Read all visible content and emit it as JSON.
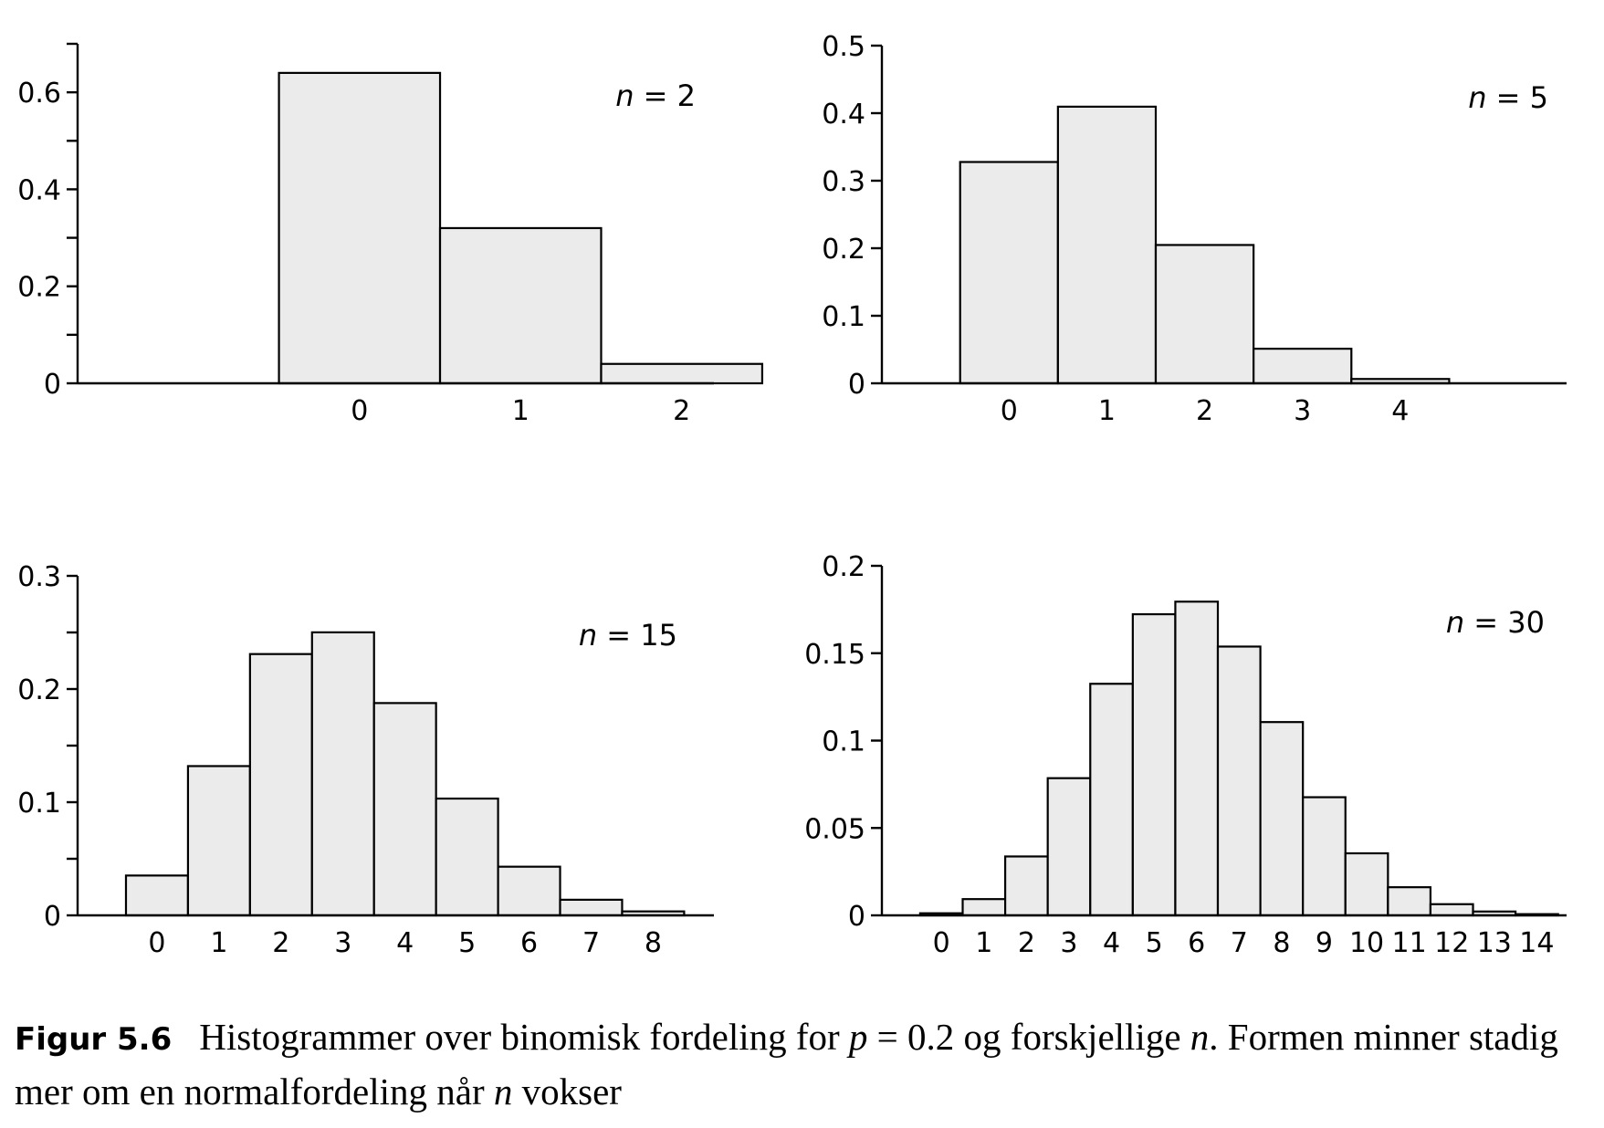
{
  "chart_data": [
    {
      "type": "bar",
      "annotation": "n = 2",
      "annotation_var": "n",
      "annotation_num": "2",
      "categories": [
        "0",
        "1",
        "2"
      ],
      "values": [
        0.64,
        0.32,
        0.04
      ],
      "ylim": [
        0,
        0.7
      ],
      "yticks": [
        0,
        0.2,
        0.4,
        0.6
      ],
      "ytick_labels": [
        "0",
        "0.2",
        "0.4",
        "0.6"
      ],
      "yminor": [
        0.1,
        0.3,
        0.5,
        0.7
      ],
      "xlim": [
        -1.75,
        2.2
      ]
    },
    {
      "type": "bar",
      "annotation": "n = 5",
      "annotation_var": "n",
      "annotation_num": "5",
      "categories": [
        "0",
        "1",
        "2",
        "3",
        "4"
      ],
      "values": [
        0.3277,
        0.4096,
        0.2048,
        0.0512,
        0.0064
      ],
      "ylim": [
        0,
        0.5
      ],
      "yticks": [
        0,
        0.1,
        0.2,
        0.3,
        0.4,
        0.5
      ],
      "ytick_labels": [
        "0",
        "0.1",
        "0.2",
        "0.3",
        "0.4",
        "0.5"
      ],
      "yminor": [],
      "xlim": [
        -1.3,
        5.7
      ]
    },
    {
      "type": "bar",
      "annotation": "n = 15",
      "annotation_var": "n",
      "annotation_num": "15",
      "categories": [
        "0",
        "1",
        "2",
        "3",
        "4",
        "5",
        "6",
        "7",
        "8"
      ],
      "values": [
        0.0352,
        0.1319,
        0.2309,
        0.2501,
        0.1876,
        0.1032,
        0.043,
        0.0138,
        0.0035
      ],
      "ylim": [
        0,
        0.3
      ],
      "yticks": [
        0,
        0.1,
        0.2,
        0.3
      ],
      "ytick_labels": [
        "0",
        "0.1",
        "0.2",
        "0.3"
      ],
      "yminor": [
        0.05,
        0.15,
        0.25
      ],
      "xlim": [
        -1.28,
        8.98
      ]
    },
    {
      "type": "bar",
      "annotation": "n = 30",
      "annotation_var": "n",
      "annotation_num": "30",
      "categories": [
        "0",
        "1",
        "2",
        "3",
        "4",
        "5",
        "6",
        "7",
        "8",
        "9",
        "10",
        "11",
        "12",
        "13",
        "14"
      ],
      "values": [
        0.0012,
        0.0093,
        0.0337,
        0.0785,
        0.1325,
        0.1723,
        0.1795,
        0.1538,
        0.1106,
        0.0676,
        0.0355,
        0.0161,
        0.0064,
        0.0022,
        0.0007
      ],
      "ylim": [
        0,
        0.2
      ],
      "yticks": [
        0,
        0.05,
        0.1,
        0.15,
        0.2
      ],
      "ytick_labels": [
        "0",
        "0.05",
        "0.1",
        "0.15",
        "0.2"
      ],
      "yminor": [],
      "xlim": [
        -1.4,
        14.7
      ]
    }
  ],
  "caption": {
    "label": "Figur 5.6",
    "text_1": "Histogrammer over binomisk fordeling for ",
    "math_p": "p",
    "eq": " = 0.2",
    "text_2": " og forskjellige ",
    "math_n1": "n",
    "text_3": ". Formen minner stadig mer om en normalfordeling når ",
    "math_n2": "n",
    "text_4": " vokser"
  }
}
